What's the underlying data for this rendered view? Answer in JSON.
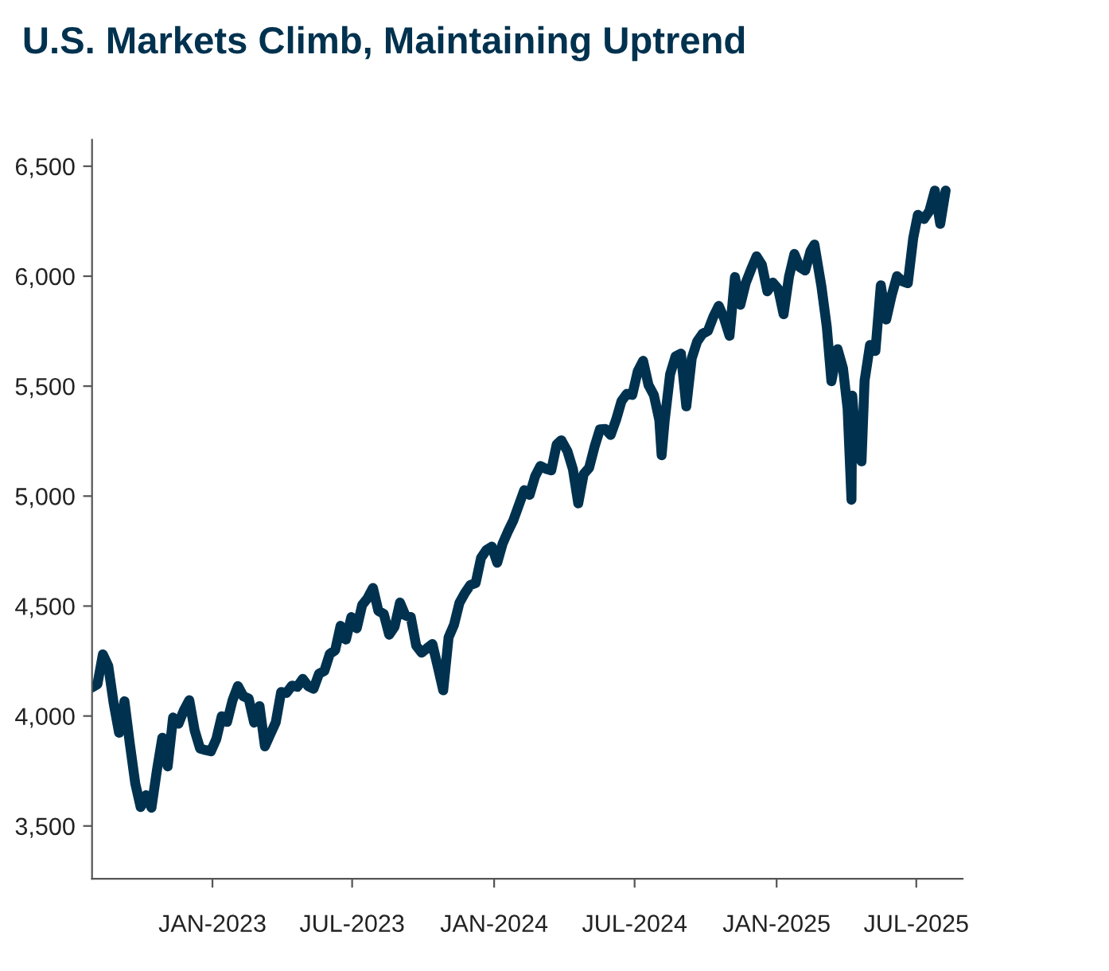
{
  "chart_data": {
    "type": "line",
    "title": "U.S. Markets Climb, Maintaining Uptrend",
    "x": [
      "2022-07-29",
      "2022-08-05",
      "2022-08-12",
      "2022-08-19",
      "2022-08-26",
      "2022-09-02",
      "2022-09-09",
      "2022-09-16",
      "2022-09-23",
      "2022-09-30",
      "2022-10-07",
      "2022-10-14",
      "2022-10-21",
      "2022-10-28",
      "2022-11-04",
      "2022-11-11",
      "2022-11-18",
      "2022-11-25",
      "2022-12-02",
      "2022-12-09",
      "2022-12-16",
      "2022-12-23",
      "2022-12-30",
      "2023-01-06",
      "2023-01-13",
      "2023-01-20",
      "2023-01-27",
      "2023-02-03",
      "2023-02-10",
      "2023-02-17",
      "2023-02-24",
      "2023-03-03",
      "2023-03-10",
      "2023-03-17",
      "2023-03-24",
      "2023-03-31",
      "2023-04-07",
      "2023-04-14",
      "2023-04-21",
      "2023-04-28",
      "2023-05-05",
      "2023-05-12",
      "2023-05-19",
      "2023-05-26",
      "2023-06-02",
      "2023-06-09",
      "2023-06-16",
      "2023-06-23",
      "2023-06-30",
      "2023-07-07",
      "2023-07-14",
      "2023-07-21",
      "2023-07-28",
      "2023-08-04",
      "2023-08-11",
      "2023-08-18",
      "2023-08-25",
      "2023-09-01",
      "2023-09-08",
      "2023-09-15",
      "2023-09-22",
      "2023-09-29",
      "2023-10-06",
      "2023-10-13",
      "2023-10-20",
      "2023-10-27",
      "2023-11-03",
      "2023-11-10",
      "2023-11-17",
      "2023-11-24",
      "2023-12-01",
      "2023-12-08",
      "2023-12-15",
      "2023-12-22",
      "2023-12-29",
      "2024-01-05",
      "2024-01-12",
      "2024-01-19",
      "2024-01-26",
      "2024-02-02",
      "2024-02-09",
      "2024-02-16",
      "2024-02-23",
      "2024-03-01",
      "2024-03-08",
      "2024-03-15",
      "2024-03-22",
      "2024-03-28",
      "2024-04-05",
      "2024-04-12",
      "2024-04-19",
      "2024-04-26",
      "2024-05-03",
      "2024-05-10",
      "2024-05-17",
      "2024-05-24",
      "2024-05-31",
      "2024-06-07",
      "2024-06-14",
      "2024-06-21",
      "2024-06-28",
      "2024-07-05",
      "2024-07-12",
      "2024-07-19",
      "2024-07-26",
      "2024-08-02",
      "2024-08-05",
      "2024-08-09",
      "2024-08-16",
      "2024-08-23",
      "2024-08-30",
      "2024-09-06",
      "2024-09-13",
      "2024-09-20",
      "2024-09-27",
      "2024-10-04",
      "2024-10-11",
      "2024-10-18",
      "2024-10-25",
      "2024-11-01",
      "2024-11-08",
      "2024-11-15",
      "2024-11-22",
      "2024-11-29",
      "2024-12-06",
      "2024-12-13",
      "2024-12-20",
      "2024-12-27",
      "2025-01-03",
      "2025-01-10",
      "2025-01-17",
      "2025-01-24",
      "2025-01-31",
      "2025-02-07",
      "2025-02-14",
      "2025-02-19",
      "2025-02-28",
      "2025-03-07",
      "2025-03-13",
      "2025-03-21",
      "2025-03-28",
      "2025-04-03",
      "2025-04-08",
      "2025-04-09",
      "2025-04-11",
      "2025-04-21",
      "2025-04-25",
      "2025-05-02",
      "2025-05-09",
      "2025-05-16",
      "2025-05-23",
      "2025-05-30",
      "2025-06-06",
      "2025-06-13",
      "2025-06-20",
      "2025-06-27",
      "2025-07-03",
      "2025-07-11",
      "2025-07-18",
      "2025-07-25",
      "2025-08-01",
      "2025-08-08"
    ],
    "series": [
      {
        "color": "#00324f",
        "values": [
          4130,
          4145,
          4280,
          4228,
          4058,
          3924,
          4067,
          3873,
          3693,
          3586,
          3640,
          3583,
          3752,
          3901,
          3771,
          3993,
          3965,
          4026,
          4072,
          3934,
          3852,
          3845,
          3840,
          3895,
          3999,
          3973,
          4071,
          4136,
          4090,
          4079,
          3970,
          4045,
          3862,
          3917,
          3971,
          4109,
          4105,
          4138,
          4133,
          4169,
          4136,
          4124,
          4192,
          4205,
          4282,
          4299,
          4410,
          4348,
          4450,
          4399,
          4505,
          4536,
          4582,
          4478,
          4464,
          4370,
          4406,
          4516,
          4457,
          4450,
          4320,
          4288,
          4308,
          4327,
          4224,
          4117,
          4358,
          4415,
          4514,
          4559,
          4595,
          4604,
          4719,
          4755,
          4770,
          4697,
          4784,
          4840,
          4891,
          4959,
          5027,
          5006,
          5089,
          5137,
          5124,
          5117,
          5234,
          5254,
          5204,
          5123,
          4967,
          5100,
          5128,
          5223,
          5303,
          5305,
          5278,
          5347,
          5432,
          5465,
          5460,
          5567,
          5615,
          5505,
          5459,
          5346,
          5186,
          5344,
          5554,
          5635,
          5648,
          5408,
          5626,
          5703,
          5738,
          5751,
          5815,
          5865,
          5808,
          5729,
          5996,
          5870,
          5969,
          6032,
          6090,
          6051,
          5931,
          5971,
          5942,
          5827,
          5997,
          6101,
          6041,
          6026,
          6115,
          6144,
          5955,
          5770,
          5522,
          5668,
          5581,
          5397,
          4983,
          5457,
          5363,
          5158,
          5525,
          5687,
          5660,
          5958,
          5803,
          5912,
          6000,
          5977,
          5968,
          6173,
          6279,
          6260,
          6297,
          6389,
          6238,
          6389
        ]
      }
    ],
    "xlim": [
      "2022-07-29",
      "2025-08-30"
    ],
    "xticks": [
      {
        "value": "2023-01-01",
        "label": "JAN-2023"
      },
      {
        "value": "2023-07-01",
        "label": "JUL-2023"
      },
      {
        "value": "2024-01-01",
        "label": "JAN-2024"
      },
      {
        "value": "2024-07-01",
        "label": "JUL-2024"
      },
      {
        "value": "2025-01-01",
        "label": "JAN-2025"
      },
      {
        "value": "2025-07-01",
        "label": "JUL-2025"
      }
    ],
    "ylim": [
      3260,
      6620
    ],
    "yticks": [
      {
        "value": 3500,
        "label": "3,500"
      },
      {
        "value": 4000,
        "label": "4,000"
      },
      {
        "value": 4500,
        "label": "4,500"
      },
      {
        "value": 5000,
        "label": "5,000"
      },
      {
        "value": 5500,
        "label": "5,500"
      },
      {
        "value": 6000,
        "label": "6,000"
      },
      {
        "value": 6500,
        "label": "6,500"
      }
    ],
    "grid": false,
    "legend": false
  }
}
